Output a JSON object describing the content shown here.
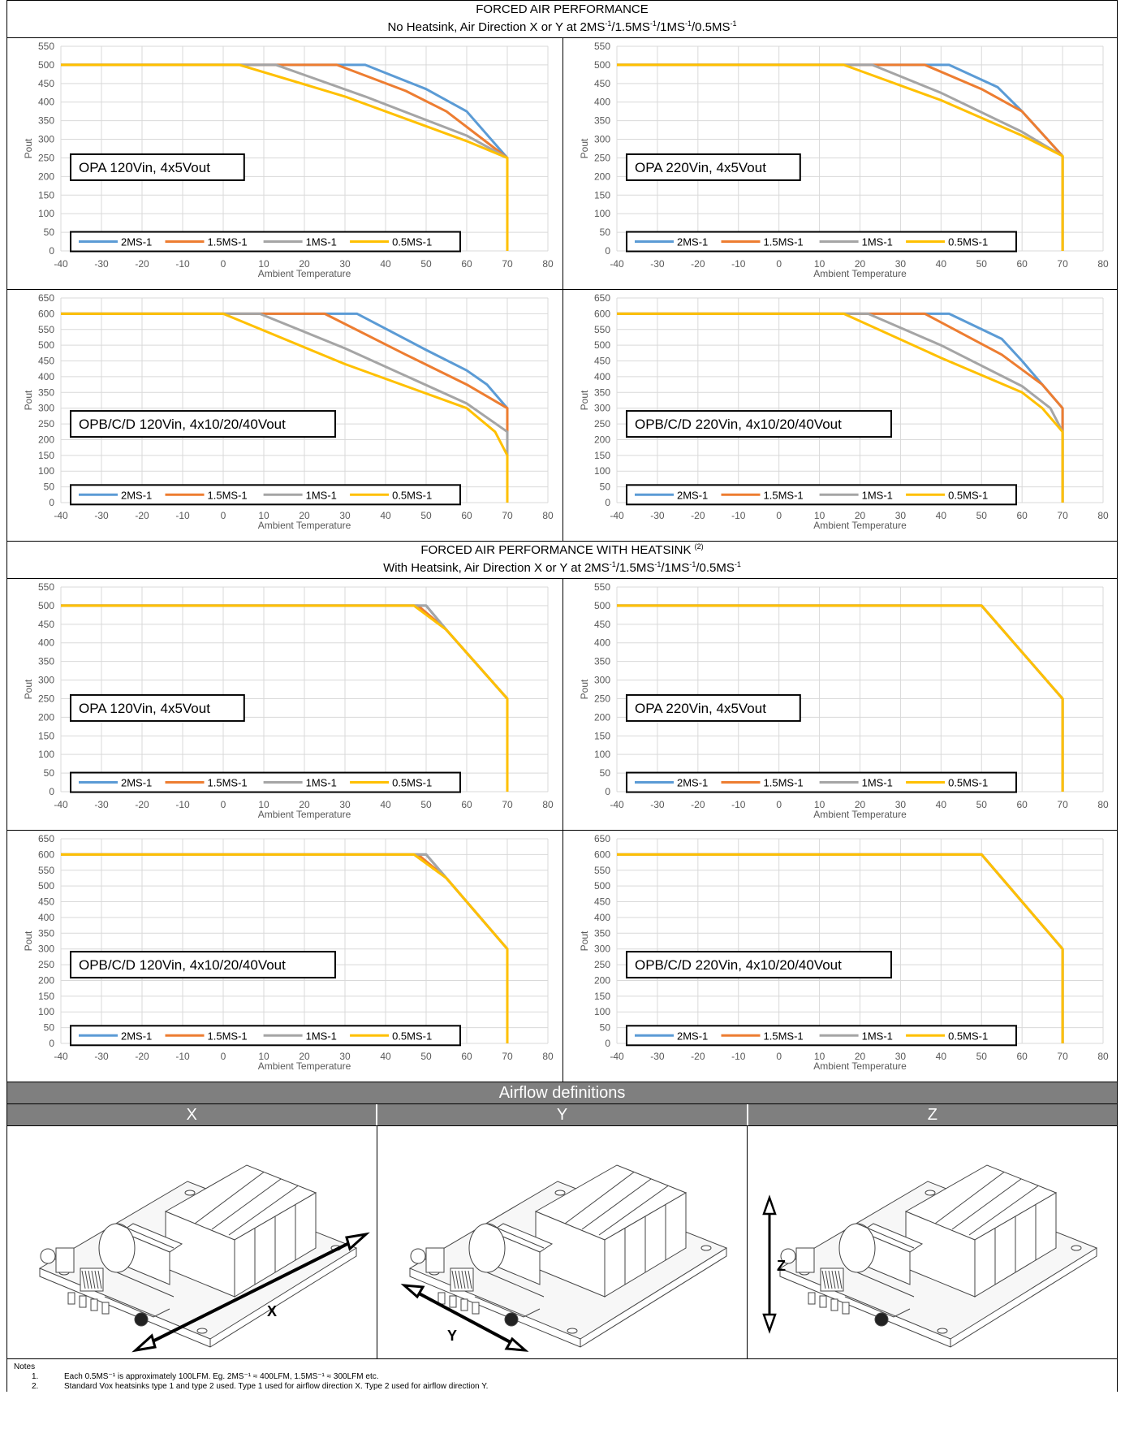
{
  "sections": [
    {
      "title": "FORCED AIR PERFORMANCE",
      "subtitle_prefix": "No Heatsink, Air Direction X or Y at ",
      "speeds": [
        "2MS",
        "1.5MS",
        "1MS",
        "0.5MS"
      ],
      "speed_sup": "-1",
      "title_sup": ""
    },
    {
      "title": "FORCED AIR PERFORMANCE WITH HEATSINK",
      "title_sup": "(2)",
      "subtitle_prefix": "With Heatsink, Air Direction X or Y at ",
      "speeds": [
        "2MS",
        "1.5MS",
        "1MS",
        "0.5MS"
      ],
      "speed_sup": "-1"
    }
  ],
  "series_colors": {
    "2MS-1": "#5b9bd5",
    "1.5MS-1": "#ed7d31",
    "1MS-1": "#a5a5a5",
    "0.5MS-1": "#ffc000"
  },
  "chart_data": [
    {
      "id": "c1",
      "type": "line",
      "caption": "OPA 120Vin, 4x5Vout",
      "xlabel": "Ambient Temperature",
      "ylabel": "Pout",
      "xlim": [
        -40,
        80
      ],
      "xticks": [
        -40,
        -30,
        -20,
        -10,
        0,
        10,
        20,
        30,
        40,
        50,
        60,
        70,
        80
      ],
      "ylim": [
        0,
        550
      ],
      "ystep": 50,
      "grid": true,
      "legend_position": "bottom-left",
      "series": [
        {
          "name": "2MS-1",
          "points": [
            [
              -40,
              500
            ],
            [
              35,
              500
            ],
            [
              50,
              435
            ],
            [
              60,
              375
            ],
            [
              70,
              250
            ],
            [
              70,
              0
            ]
          ]
        },
        {
          "name": "1.5MS-1",
          "points": [
            [
              -40,
              500
            ],
            [
              28,
              500
            ],
            [
              45,
              430
            ],
            [
              55,
              375
            ],
            [
              70,
              250
            ],
            [
              70,
              0
            ]
          ]
        },
        {
          "name": "1MS-1",
          "points": [
            [
              -40,
              500
            ],
            [
              13,
              500
            ],
            [
              35,
              415
            ],
            [
              60,
              310
            ],
            [
              70,
              250
            ],
            [
              70,
              0
            ]
          ]
        },
        {
          "name": "0.5MS-1",
          "points": [
            [
              -40,
              500
            ],
            [
              4,
              500
            ],
            [
              30,
              415
            ],
            [
              60,
              295
            ],
            [
              70,
              250
            ],
            [
              70,
              0
            ]
          ]
        }
      ]
    },
    {
      "id": "c2",
      "type": "line",
      "caption": "OPA 220Vin, 4x5Vout",
      "xlabel": "Ambient Temperature",
      "ylabel": "Pout",
      "xlim": [
        -40,
        80
      ],
      "xticks": [
        -40,
        -30,
        -20,
        -10,
        0,
        10,
        20,
        30,
        40,
        50,
        60,
        70,
        80
      ],
      "ylim": [
        0,
        550
      ],
      "ystep": 50,
      "grid": true,
      "legend_position": "bottom-left",
      "series": [
        {
          "name": "2MS-1",
          "points": [
            [
              -40,
              500
            ],
            [
              42,
              500
            ],
            [
              54,
              440
            ],
            [
              60,
              375
            ],
            [
              70,
              255
            ],
            [
              70,
              0
            ]
          ]
        },
        {
          "name": "1.5MS-1",
          "points": [
            [
              -40,
              500
            ],
            [
              36,
              500
            ],
            [
              50,
              435
            ],
            [
              60,
              375
            ],
            [
              70,
              255
            ],
            [
              70,
              0
            ]
          ]
        },
        {
          "name": "1MS-1",
          "points": [
            [
              -40,
              500
            ],
            [
              23,
              500
            ],
            [
              40,
              425
            ],
            [
              60,
              320
            ],
            [
              70,
              255
            ],
            [
              70,
              0
            ]
          ]
        },
        {
          "name": "0.5MS-1",
          "points": [
            [
              -40,
              500
            ],
            [
              16,
              500
            ],
            [
              40,
              405
            ],
            [
              60,
              310
            ],
            [
              70,
              255
            ],
            [
              70,
              0
            ]
          ]
        }
      ]
    },
    {
      "id": "c3",
      "type": "line",
      "caption": "OPB/C/D 120Vin, 4x10/20/40Vout",
      "xlabel": "Ambient Temperature",
      "ylabel": "Pout",
      "xlim": [
        -40,
        80
      ],
      "xticks": [
        -40,
        -30,
        -20,
        -10,
        0,
        10,
        20,
        30,
        40,
        50,
        60,
        70,
        80
      ],
      "ylim": [
        0,
        650
      ],
      "ystep": 50,
      "grid": true,
      "legend_position": "bottom-left",
      "series": [
        {
          "name": "2MS-1",
          "points": [
            [
              -40,
              600
            ],
            [
              33,
              600
            ],
            [
              50,
              485
            ],
            [
              60,
              420
            ],
            [
              65,
              375
            ],
            [
              70,
              300
            ],
            [
              70,
              0
            ]
          ]
        },
        {
          "name": "1.5MS-1",
          "points": [
            [
              -40,
              600
            ],
            [
              25,
              600
            ],
            [
              45,
              470
            ],
            [
              60,
              375
            ],
            [
              70,
              300
            ],
            [
              70,
              0
            ]
          ]
        },
        {
          "name": "1MS-1",
          "points": [
            [
              -40,
              600
            ],
            [
              9,
              600
            ],
            [
              30,
              490
            ],
            [
              60,
              315
            ],
            [
              70,
              225
            ],
            [
              70,
              0
            ]
          ]
        },
        {
          "name": "0.5MS-1",
          "points": [
            [
              -40,
              600
            ],
            [
              0,
              600
            ],
            [
              30,
              440
            ],
            [
              60,
              300
            ],
            [
              67,
              225
            ],
            [
              70,
              150
            ],
            [
              70,
              0
            ]
          ]
        }
      ]
    },
    {
      "id": "c4",
      "type": "line",
      "caption": "OPB/C/D 220Vin, 4x10/20/40Vout",
      "xlabel": "Ambient Temperature",
      "ylabel": "Pout",
      "xlim": [
        -40,
        80
      ],
      "xticks": [
        -40,
        -30,
        -20,
        -10,
        0,
        10,
        20,
        30,
        40,
        50,
        60,
        70,
        80
      ],
      "ylim": [
        0,
        650
      ],
      "ystep": 50,
      "grid": true,
      "legend_position": "bottom-left",
      "series": [
        {
          "name": "2MS-1",
          "points": [
            [
              -40,
              600
            ],
            [
              42,
              600
            ],
            [
              55,
              520
            ],
            [
              60,
              450
            ],
            [
              65,
              375
            ],
            [
              70,
              300
            ],
            [
              70,
              0
            ]
          ]
        },
        {
          "name": "1.5MS-1",
          "points": [
            [
              -40,
              600
            ],
            [
              36,
              600
            ],
            [
              55,
              470
            ],
            [
              65,
              375
            ],
            [
              70,
              300
            ],
            [
              70,
              0
            ]
          ]
        },
        {
          "name": "1MS-1",
          "points": [
            [
              -40,
              600
            ],
            [
              22,
              600
            ],
            [
              40,
              500
            ],
            [
              60,
              370
            ],
            [
              67,
              300
            ],
            [
              70,
              225
            ],
            [
              70,
              0
            ]
          ]
        },
        {
          "name": "0.5MS-1",
          "points": [
            [
              -40,
              600
            ],
            [
              16,
              600
            ],
            [
              40,
              460
            ],
            [
              60,
              350
            ],
            [
              65,
              300
            ],
            [
              70,
              225
            ],
            [
              70,
              0
            ]
          ]
        }
      ]
    },
    {
      "id": "c5",
      "type": "line",
      "caption": "OPA 120Vin, 4x5Vout",
      "xlabel": "Ambient Temperature",
      "ylabel": "Pout",
      "xlim": [
        -40,
        80
      ],
      "xticks": [
        -40,
        -30,
        -20,
        -10,
        0,
        10,
        20,
        30,
        40,
        50,
        60,
        70,
        80
      ],
      "ylim": [
        0,
        550
      ],
      "ystep": 50,
      "grid": true,
      "legend_position": "bottom-left",
      "series": [
        {
          "name": "2MS-1",
          "points": [
            [
              -40,
              500
            ],
            [
              50,
              500
            ],
            [
              55,
              435
            ],
            [
              70,
              250
            ],
            [
              70,
              0
            ]
          ]
        },
        {
          "name": "1.5MS-1",
          "points": [
            [
              -40,
              500
            ],
            [
              48,
              500
            ],
            [
              55,
              435
            ],
            [
              70,
              250
            ],
            [
              70,
              0
            ]
          ]
        },
        {
          "name": "1MS-1",
          "points": [
            [
              -40,
              500
            ],
            [
              50,
              500
            ],
            [
              55,
              435
            ],
            [
              70,
              250
            ],
            [
              70,
              0
            ]
          ]
        },
        {
          "name": "0.5MS-1",
          "points": [
            [
              -40,
              500
            ],
            [
              47,
              500
            ],
            [
              55,
              435
            ],
            [
              70,
              250
            ],
            [
              70,
              0
            ]
          ]
        }
      ]
    },
    {
      "id": "c6",
      "type": "line",
      "caption": "OPA 220Vin, 4x5Vout",
      "xlabel": "Ambient Temperature",
      "ylabel": "Pout",
      "xlim": [
        -40,
        80
      ],
      "xticks": [
        -40,
        -30,
        -20,
        -10,
        0,
        10,
        20,
        30,
        40,
        50,
        60,
        70,
        80
      ],
      "ylim": [
        0,
        550
      ],
      "ystep": 50,
      "grid": true,
      "legend_position": "bottom-left",
      "series": [
        {
          "name": "2MS-1",
          "points": [
            [
              -40,
              500
            ],
            [
              50,
              500
            ],
            [
              70,
              250
            ],
            [
              70,
              0
            ]
          ]
        },
        {
          "name": "1.5MS-1",
          "points": [
            [
              -40,
              500
            ],
            [
              50,
              500
            ],
            [
              70,
              250
            ],
            [
              70,
              0
            ]
          ]
        },
        {
          "name": "1MS-1",
          "points": [
            [
              -40,
              500
            ],
            [
              50,
              500
            ],
            [
              70,
              250
            ],
            [
              70,
              0
            ]
          ]
        },
        {
          "name": "0.5MS-1",
          "points": [
            [
              -40,
              500
            ],
            [
              50,
              500
            ],
            [
              70,
              250
            ],
            [
              70,
              0
            ]
          ]
        }
      ]
    },
    {
      "id": "c7",
      "type": "line",
      "caption": "OPB/C/D 120Vin, 4x10/20/40Vout",
      "xlabel": "Ambient Temperature",
      "ylabel": "Pout",
      "xlim": [
        -40,
        80
      ],
      "xticks": [
        -40,
        -30,
        -20,
        -10,
        0,
        10,
        20,
        30,
        40,
        50,
        60,
        70,
        80
      ],
      "ylim": [
        0,
        650
      ],
      "ystep": 50,
      "grid": true,
      "legend_position": "bottom-left",
      "series": [
        {
          "name": "2MS-1",
          "points": [
            [
              -40,
              600
            ],
            [
              50,
              600
            ],
            [
              55,
              525
            ],
            [
              70,
              300
            ],
            [
              70,
              0
            ]
          ]
        },
        {
          "name": "1.5MS-1",
          "points": [
            [
              -40,
              600
            ],
            [
              48,
              600
            ],
            [
              55,
              525
            ],
            [
              70,
              300
            ],
            [
              70,
              0
            ]
          ]
        },
        {
          "name": "1MS-1",
          "points": [
            [
              -40,
              600
            ],
            [
              50,
              600
            ],
            [
              55,
              525
            ],
            [
              70,
              300
            ],
            [
              70,
              0
            ]
          ]
        },
        {
          "name": "0.5MS-1",
          "points": [
            [
              -40,
              600
            ],
            [
              47,
              600
            ],
            [
              55,
              525
            ],
            [
              70,
              300
            ],
            [
              70,
              0
            ]
          ]
        }
      ]
    },
    {
      "id": "c8",
      "type": "line",
      "caption": "OPB/C/D 220Vin, 4x10/20/40Vout",
      "xlabel": "Ambient Temperature",
      "ylabel": "Pout",
      "xlim": [
        -40,
        80
      ],
      "xticks": [
        -40,
        -30,
        -20,
        -10,
        0,
        10,
        20,
        30,
        40,
        50,
        60,
        70,
        80
      ],
      "ylim": [
        0,
        650
      ],
      "ystep": 50,
      "grid": true,
      "legend_position": "bottom-left",
      "series": [
        {
          "name": "2MS-1",
          "points": [
            [
              -40,
              600
            ],
            [
              50,
              600
            ],
            [
              70,
              300
            ],
            [
              70,
              0
            ]
          ]
        },
        {
          "name": "1.5MS-1",
          "points": [
            [
              -40,
              600
            ],
            [
              50,
              600
            ],
            [
              70,
              300
            ],
            [
              70,
              0
            ]
          ]
        },
        {
          "name": "1MS-1",
          "points": [
            [
              -40,
              600
            ],
            [
              50,
              600
            ],
            [
              70,
              300
            ],
            [
              70,
              0
            ]
          ]
        },
        {
          "name": "0.5MS-1",
          "points": [
            [
              -40,
              600
            ],
            [
              50,
              600
            ],
            [
              70,
              300
            ],
            [
              70,
              0
            ]
          ]
        }
      ]
    }
  ],
  "airflow": {
    "title": "Airflow definitions",
    "axes": [
      {
        "label": "X",
        "arrow_label": "X"
      },
      {
        "label": "Y",
        "arrow_label": "Y"
      },
      {
        "label": "Z",
        "arrow_label": "Z"
      }
    ]
  },
  "notes": {
    "title": "Notes",
    "items": [
      {
        "num": "1.",
        "text": "Each 0.5MS⁻¹ is approximately 100LFM. Eg. 2MS⁻¹ ≈ 400LFM, 1.5MS⁻¹ ≈ 300LFM etc."
      },
      {
        "num": "2.",
        "text": "Standard Vox heatsinks type 1 and type 2 used. Type 1 used for airflow direction X. Type 2 used for airflow direction Y."
      }
    ]
  }
}
